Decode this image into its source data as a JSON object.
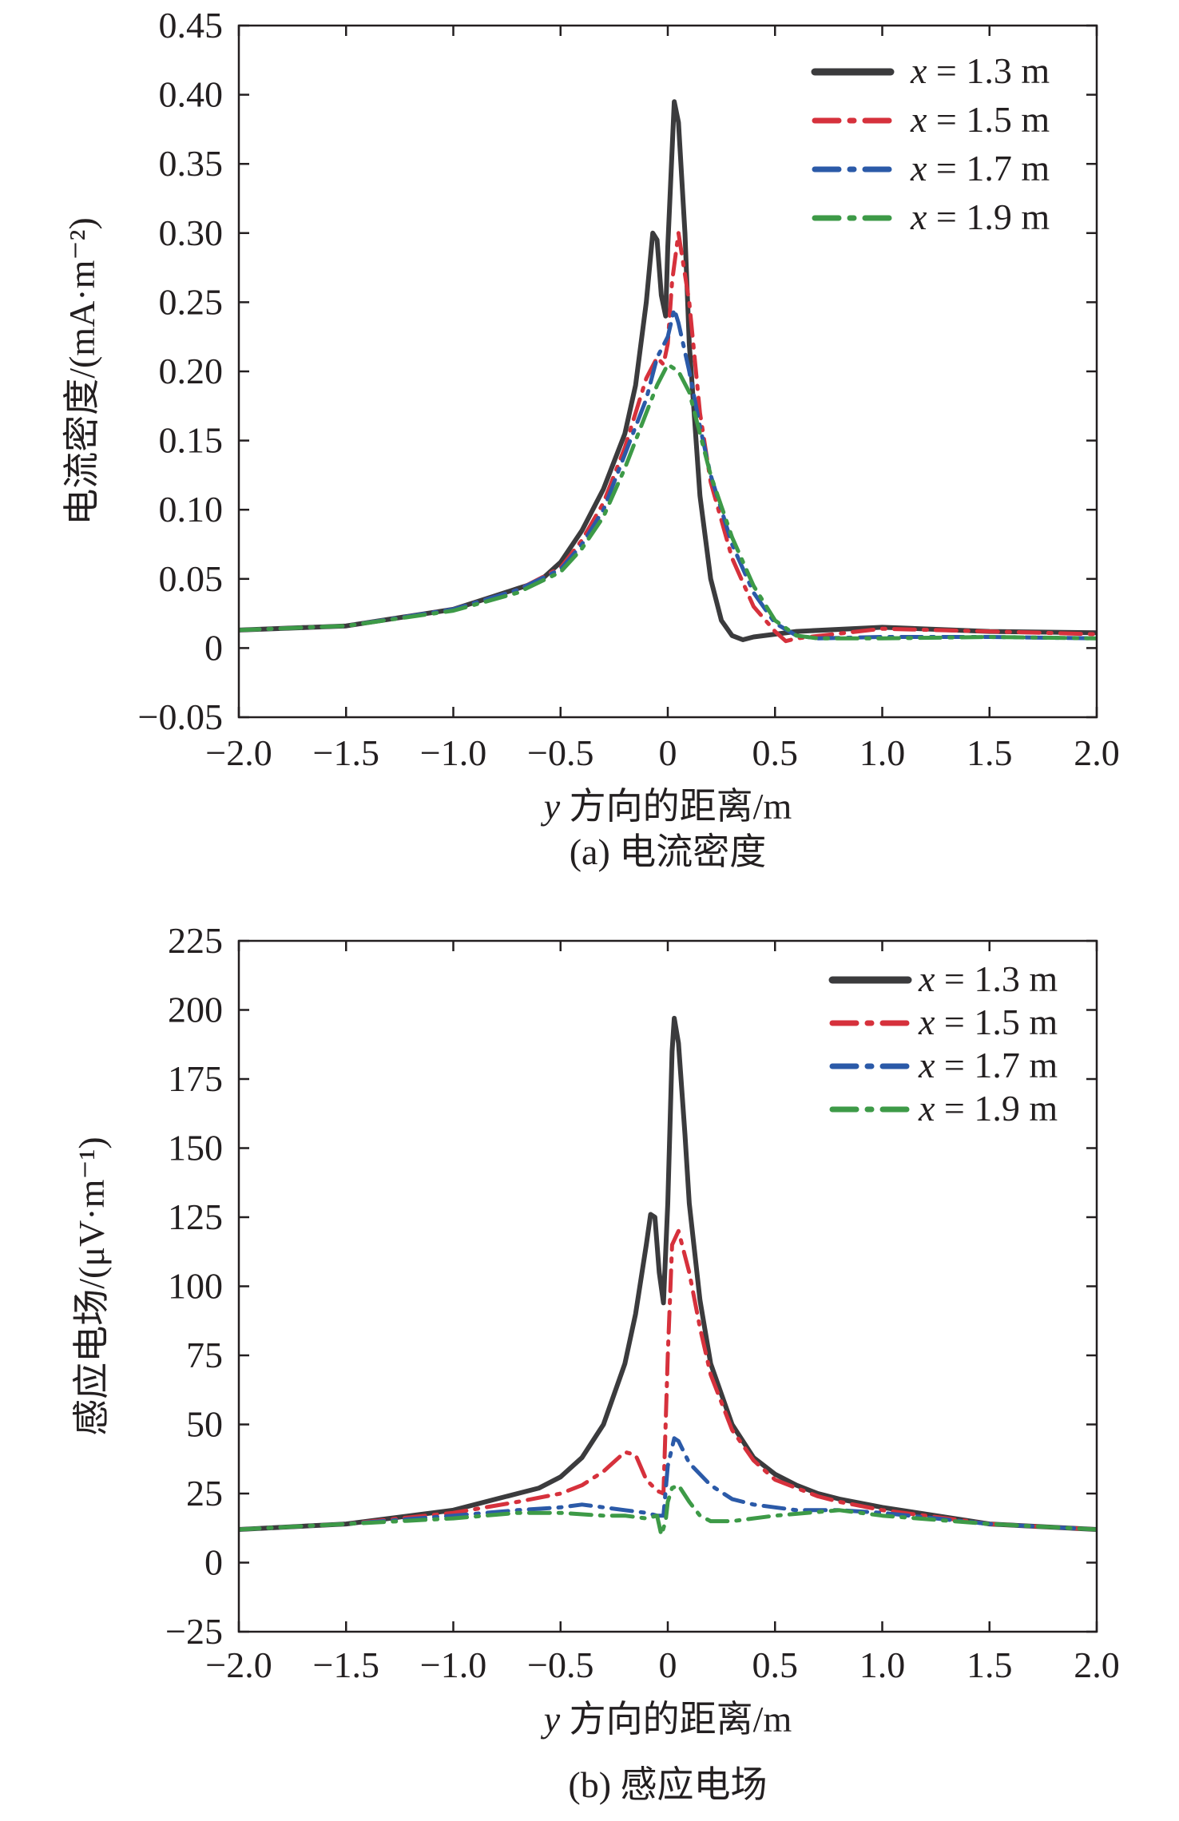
{
  "chart_data": [
    {
      "type": "line",
      "caption": "(a) 电流密度",
      "xlabel": "y 方向的距离/m",
      "ylabel": "电流密度/(mA·m⁻²)",
      "xlim": [
        -2.0,
        2.0
      ],
      "ylim": [
        -0.05,
        0.45
      ],
      "x_ticks": [
        -2.0,
        -1.5,
        -1.0,
        -0.5,
        0,
        0.5,
        1.0,
        1.5,
        2.0
      ],
      "x_tick_labels": [
        "−2.0",
        "−1.5",
        "−1.0",
        "−0.5",
        "0",
        "0.5",
        "1.0",
        "1.5",
        "2.0"
      ],
      "y_ticks": [
        -0.05,
        0,
        0.05,
        0.1,
        0.15,
        0.2,
        0.25,
        0.3,
        0.35,
        0.4,
        0.45
      ],
      "y_tick_labels": [
        "−0.05",
        "0",
        "0.05",
        "0.10",
        "0.15",
        "0.20",
        "0.25",
        "0.30",
        "0.35",
        "0.40",
        "0.45"
      ],
      "grid": false,
      "legend_position": "top-right",
      "series": [
        {
          "name": "x = 1.3 m",
          "color": "#3b3b3d",
          "style": "solid",
          "x": [
            -2.0,
            -1.5,
            -1.0,
            -0.8,
            -0.7,
            -0.6,
            -0.5,
            -0.4,
            -0.3,
            -0.2,
            -0.15,
            -0.1,
            -0.07,
            -0.05,
            -0.03,
            -0.01,
            0.0,
            0.02,
            0.03,
            0.05,
            0.08,
            0.1,
            0.15,
            0.2,
            0.25,
            0.3,
            0.35,
            0.4,
            0.6,
            1.0,
            1.5,
            2.0
          ],
          "y": [
            0.013,
            0.016,
            0.028,
            0.038,
            0.043,
            0.048,
            0.062,
            0.085,
            0.115,
            0.155,
            0.19,
            0.25,
            0.3,
            0.295,
            0.255,
            0.24,
            0.29,
            0.36,
            0.395,
            0.38,
            0.3,
            0.22,
            0.11,
            0.05,
            0.02,
            0.009,
            0.006,
            0.008,
            0.012,
            0.015,
            0.012,
            0.011
          ]
        },
        {
          "name": "x = 1.5 m",
          "color": "#d6313c",
          "style": "dash-dot",
          "x": [
            -2.0,
            -1.5,
            -1.0,
            -0.7,
            -0.5,
            -0.4,
            -0.3,
            -0.2,
            -0.1,
            -0.05,
            -0.02,
            0.0,
            0.02,
            0.05,
            0.1,
            0.15,
            0.2,
            0.3,
            0.4,
            0.5,
            0.55,
            0.6,
            1.0,
            1.5,
            2.0
          ],
          "y": [
            0.013,
            0.016,
            0.028,
            0.042,
            0.058,
            0.078,
            0.105,
            0.145,
            0.195,
            0.21,
            0.205,
            0.22,
            0.265,
            0.3,
            0.25,
            0.17,
            0.12,
            0.065,
            0.03,
            0.012,
            0.005,
            0.007,
            0.014,
            0.012,
            0.01
          ]
        },
        {
          "name": "x = 1.7 m",
          "color": "#2b5aa8",
          "style": "dash-dot",
          "x": [
            -2.0,
            -1.5,
            -1.0,
            -0.7,
            -0.5,
            -0.4,
            -0.3,
            -0.2,
            -0.1,
            -0.05,
            0.0,
            0.03,
            0.05,
            0.1,
            0.15,
            0.2,
            0.3,
            0.4,
            0.5,
            0.6,
            0.7,
            1.0,
            1.5,
            2.0
          ],
          "y": [
            0.013,
            0.016,
            0.028,
            0.042,
            0.057,
            0.075,
            0.1,
            0.14,
            0.18,
            0.21,
            0.225,
            0.245,
            0.235,
            0.2,
            0.16,
            0.125,
            0.075,
            0.04,
            0.018,
            0.009,
            0.007,
            0.008,
            0.008,
            0.007
          ]
        },
        {
          "name": "x = 1.9 m",
          "color": "#3d9a47",
          "style": "dash-dot",
          "x": [
            -2.0,
            -1.5,
            -1.0,
            -0.7,
            -0.5,
            -0.4,
            -0.3,
            -0.2,
            -0.1,
            -0.05,
            0.0,
            0.05,
            0.1,
            0.15,
            0.2,
            0.3,
            0.4,
            0.5,
            0.6,
            0.7,
            1.0,
            1.5,
            2.0
          ],
          "y": [
            0.013,
            0.016,
            0.027,
            0.04,
            0.055,
            0.072,
            0.095,
            0.13,
            0.17,
            0.19,
            0.205,
            0.2,
            0.185,
            0.155,
            0.125,
            0.08,
            0.045,
            0.02,
            0.009,
            0.007,
            0.007,
            0.008,
            0.007
          ]
        }
      ]
    },
    {
      "type": "line",
      "caption": "(b) 感应电场",
      "xlabel": "y 方向的距离/m",
      "ylabel": "感应电场/(μV·m⁻¹)",
      "xlim": [
        -2.0,
        2.0
      ],
      "ylim": [
        -25,
        225
      ],
      "x_ticks": [
        -2.0,
        -1.5,
        -1.0,
        -0.5,
        0,
        0.5,
        1.0,
        1.5,
        2.0
      ],
      "x_tick_labels": [
        "−2.0",
        "−1.5",
        "−1.0",
        "−0.5",
        "0",
        "0.5",
        "1.0",
        "1.5",
        "2.0"
      ],
      "y_ticks": [
        -25,
        0,
        25,
        50,
        75,
        100,
        125,
        150,
        175,
        200,
        225
      ],
      "y_tick_labels": [
        "−25",
        "0",
        "25",
        "50",
        "75",
        "100",
        "125",
        "150",
        "175",
        "200",
        "225"
      ],
      "grid": false,
      "legend_position": "top-right",
      "series": [
        {
          "name": "x = 1.3 m",
          "color": "#3b3b3d",
          "style": "solid",
          "x": [
            -2.0,
            -1.5,
            -1.0,
            -0.8,
            -0.7,
            -0.6,
            -0.5,
            -0.4,
            -0.3,
            -0.2,
            -0.15,
            -0.1,
            -0.08,
            -0.06,
            -0.04,
            -0.02,
            0.0,
            0.02,
            0.03,
            0.05,
            0.08,
            0.1,
            0.15,
            0.2,
            0.3,
            0.4,
            0.5,
            0.6,
            0.7,
            0.8,
            1.0,
            1.5,
            2.0
          ],
          "y": [
            12,
            14,
            19,
            23,
            25,
            27,
            31,
            38,
            50,
            72,
            90,
            115,
            126,
            125,
            105,
            94,
            130,
            185,
            197,
            188,
            155,
            130,
            95,
            72,
            50,
            38,
            32,
            28,
            25,
            23,
            20,
            14,
            12
          ]
        },
        {
          "name": "x = 1.5 m",
          "color": "#d6313c",
          "style": "dash-dot",
          "x": [
            -2.0,
            -1.5,
            -1.0,
            -0.7,
            -0.5,
            -0.4,
            -0.3,
            -0.2,
            -0.15,
            -0.1,
            -0.05,
            -0.02,
            0.0,
            0.02,
            0.05,
            0.1,
            0.15,
            0.2,
            0.3,
            0.4,
            0.5,
            0.6,
            0.7,
            0.8,
            1.0,
            1.5,
            2.0
          ],
          "y": [
            12,
            14,
            18,
            22,
            25,
            28,
            33,
            40,
            39,
            30,
            26,
            25,
            75,
            115,
            120,
            105,
            85,
            68,
            48,
            37,
            30,
            27,
            24,
            22,
            19,
            14,
            12
          ]
        },
        {
          "name": "x = 1.7 m",
          "color": "#2b5aa8",
          "style": "dash-dot",
          "x": [
            -2.0,
            -1.5,
            -1.0,
            -0.7,
            -0.5,
            -0.4,
            -0.3,
            -0.2,
            -0.1,
            -0.05,
            -0.02,
            0.0,
            0.03,
            0.05,
            0.1,
            0.2,
            0.3,
            0.4,
            0.5,
            0.6,
            0.8,
            1.0,
            1.5,
            2.0
          ],
          "y": [
            12,
            14,
            17,
            19,
            20,
            21,
            20,
            19,
            18,
            17,
            17,
            35,
            45,
            44,
            36,
            28,
            23,
            21,
            20,
            19,
            19,
            18,
            14,
            12
          ]
        },
        {
          "name": "x = 1.9 m",
          "color": "#3d9a47",
          "style": "dash-dot",
          "x": [
            -2.0,
            -1.5,
            -1.0,
            -0.7,
            -0.5,
            -0.3,
            -0.2,
            -0.1,
            -0.05,
            -0.03,
            -0.01,
            0.0,
            0.02,
            0.05,
            0.1,
            0.15,
            0.2,
            0.3,
            0.5,
            0.8,
            1.0,
            1.5,
            2.0
          ],
          "y": [
            12,
            14,
            16,
            18,
            18,
            17,
            17,
            16,
            17,
            10,
            15,
            22,
            27,
            28,
            22,
            17,
            15,
            15,
            17,
            19,
            17,
            14,
            12
          ]
        }
      ]
    }
  ]
}
